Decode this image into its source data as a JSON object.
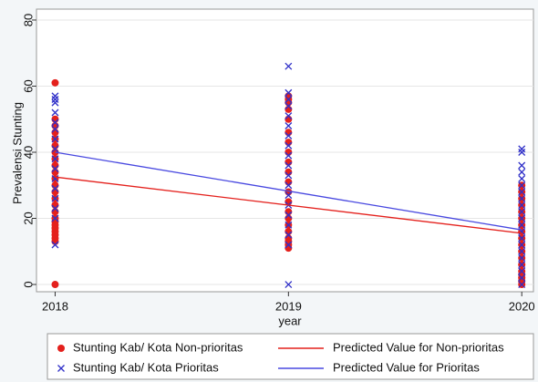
{
  "chart_data": {
    "type": "scatter",
    "xlabel": "year",
    "ylabel": "Prevalensi Stunting",
    "xlim": [
      2017.92,
      2020.05
    ],
    "ylim": [
      -2.2,
      83.3
    ],
    "xticks": [
      2018,
      2019,
      2020
    ],
    "yticks": [
      0,
      20,
      40,
      60,
      80
    ],
    "grid": true,
    "legend": "bottom",
    "series": [
      {
        "name": "Stunting Kab/ Kota Non-prioritas",
        "color": "#e4201c",
        "mode": "markers",
        "marker": "circle",
        "x": [
          2018,
          2018,
          2018,
          2018,
          2018,
          2018,
          2018,
          2018,
          2018,
          2018,
          2018,
          2018,
          2018,
          2018,
          2018,
          2018,
          2018,
          2018,
          2018,
          2018,
          2018,
          2018,
          2018,
          2018,
          2018,
          2019,
          2019,
          2019,
          2019,
          2019,
          2019,
          2019,
          2019,
          2019,
          2019,
          2019,
          2019,
          2019,
          2019,
          2019,
          2019,
          2019,
          2019,
          2019,
          2019,
          2019,
          2020,
          2020,
          2020,
          2020,
          2020,
          2020,
          2020,
          2020,
          2020,
          2020,
          2020,
          2020,
          2020,
          2020,
          2020,
          2020,
          2020,
          2020
        ],
        "values": [
          0,
          13,
          14,
          15,
          16,
          17,
          18,
          19,
          20,
          22,
          24,
          26,
          28,
          30,
          32,
          34,
          36,
          38,
          40,
          42,
          44,
          46,
          48,
          50,
          61,
          11,
          12,
          13,
          14,
          16,
          18,
          20,
          22,
          25,
          28,
          31,
          34,
          37,
          40,
          43,
          46,
          50,
          53,
          55,
          56,
          57,
          0,
          1,
          2,
          3,
          4,
          6,
          8,
          10,
          12,
          14,
          16,
          18,
          20,
          22,
          24,
          26,
          28,
          30
        ]
      },
      {
        "name": "Stunting Kab/ Kota Prioritas",
        "color": "#3030c8",
        "mode": "markers",
        "marker": "x",
        "x": [
          2018,
          2018,
          2018,
          2018,
          2018,
          2018,
          2018,
          2018,
          2018,
          2018,
          2018,
          2018,
          2018,
          2018,
          2018,
          2018,
          2019,
          2019,
          2019,
          2019,
          2019,
          2019,
          2019,
          2019,
          2019,
          2019,
          2019,
          2019,
          2019,
          2019,
          2019,
          2019,
          2019,
          2019,
          2019,
          2020,
          2020,
          2020,
          2020,
          2020,
          2020,
          2020,
          2020,
          2020,
          2020,
          2020,
          2020,
          2020,
          2020,
          2020,
          2020,
          2020,
          2020,
          2020,
          2020,
          2020
        ],
        "values": [
          12,
          20,
          23,
          26,
          29,
          32,
          35,
          38,
          41,
          44,
          47,
          49,
          52,
          55,
          56,
          57,
          0,
          12,
          15,
          18,
          21,
          24,
          27,
          30,
          33,
          36,
          39,
          42,
          45,
          48,
          51,
          54,
          56,
          58,
          66,
          0,
          2,
          4,
          6,
          8,
          10,
          12,
          14,
          16,
          18,
          20,
          22,
          24,
          26,
          28,
          30,
          32,
          34,
          36,
          40,
          41
        ]
      },
      {
        "name": "Predicted Value for Non-prioritas",
        "color": "#e4201c",
        "mode": "lines",
        "x": [
          2018,
          2020
        ],
        "values": [
          32.5,
          15.5
        ]
      },
      {
        "name": "Predicted Value for Prioritas",
        "color": "#4848e0",
        "mode": "lines",
        "x": [
          2018,
          2020
        ],
        "values": [
          40,
          16.5
        ]
      }
    ]
  }
}
